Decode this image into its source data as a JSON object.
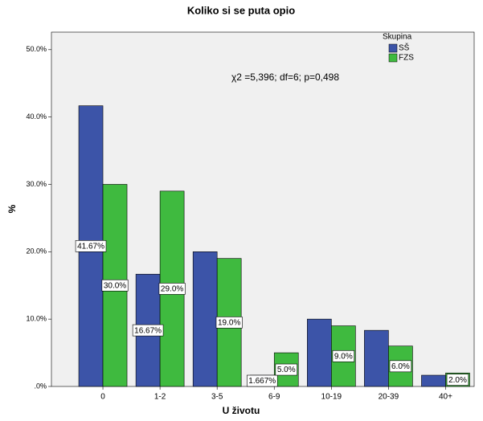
{
  "chart_data": {
    "type": "bar",
    "title": "Koliko si se puta opio",
    "x_label": "U životu",
    "y_label": "%",
    "annotation": "χ2 =5,396; df=6; p=0,498",
    "legend_title": "Skupina",
    "categories": [
      "0",
      "1-2",
      "3-5",
      "6-9",
      "10-19",
      "20-39",
      "40+"
    ],
    "series": [
      {
        "name": "SŠ",
        "color": "#3c54a8",
        "values": [
          41.67,
          16.67,
          20.0,
          1.667,
          10.0,
          8.33,
          1.667
        ],
        "value_labels": [
          "41.67%",
          "16.67%",
          null,
          "1.667%",
          null,
          null,
          null
        ]
      },
      {
        "name": "FZS",
        "color": "#3fba3f",
        "values": [
          30.0,
          29.0,
          19.0,
          5.0,
          9.0,
          6.0,
          2.0
        ],
        "value_labels": [
          "30.0%",
          "29.0%",
          "19.0%",
          "5.0%",
          "9.0%",
          "6.0%",
          "2.0%"
        ]
      }
    ],
    "ylim": [
      0,
      52.6
    ],
    "yticks": [
      {
        "value": 0,
        "label": ".0%"
      },
      {
        "value": 10,
        "label": "10.0%"
      },
      {
        "value": 20,
        "label": "20.0%"
      },
      {
        "value": 30,
        "label": "30.0%"
      },
      {
        "value": 40,
        "label": "40.0%"
      },
      {
        "value": 50,
        "label": "50.0%"
      }
    ],
    "legend_position": "upper right"
  }
}
